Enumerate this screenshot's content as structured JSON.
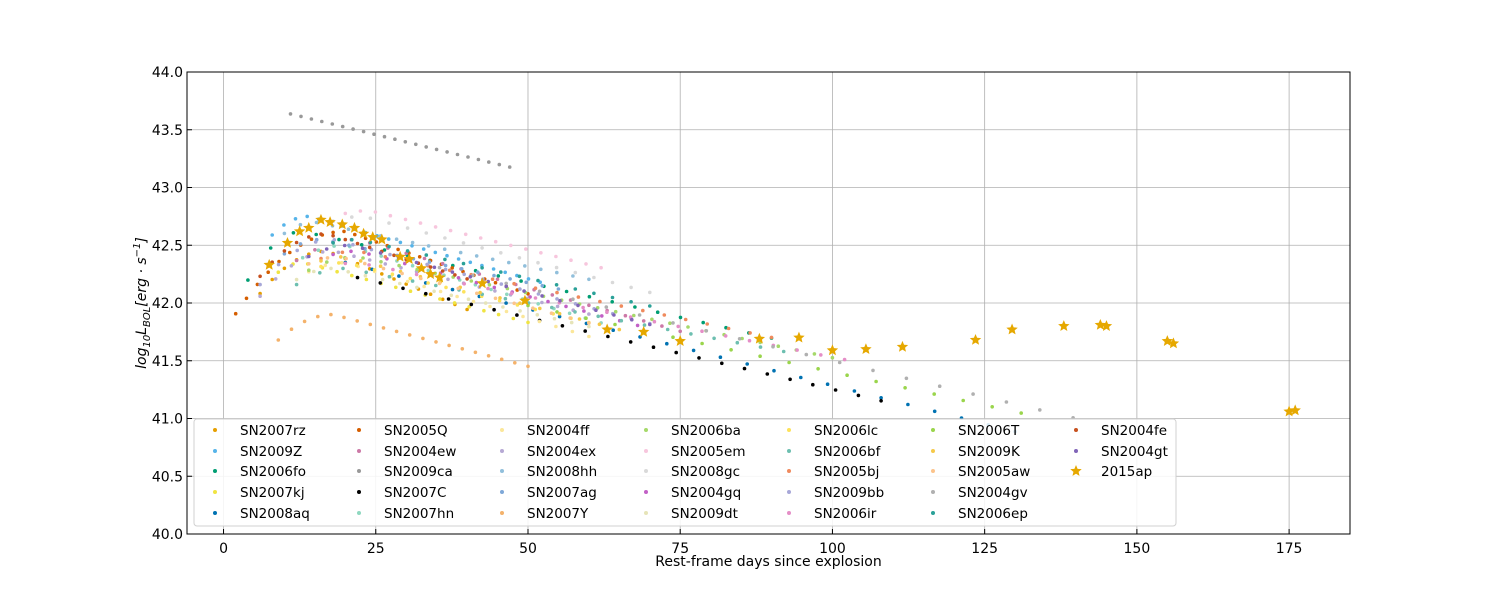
{
  "chart_data": {
    "type": "scatter",
    "xlabel": "Rest-frame days since explosion",
    "ylabel_parts": {
      "base": "log",
      "sub1": "10",
      "mid": "L",
      "sub2": "BOL",
      "bracket": "[erg · s",
      "sup": "−1",
      "close": "]"
    },
    "xlim": [
      -6,
      185
    ],
    "ylim": [
      40.0,
      44.0
    ],
    "xticks": [
      0,
      25,
      50,
      75,
      100,
      125,
      150,
      175
    ],
    "yticks": [
      40.0,
      40.5,
      41.0,
      41.5,
      42.0,
      42.5,
      43.0,
      43.5,
      44.0
    ],
    "ytick_labels": [
      "40.0",
      "40.5",
      "41.0",
      "41.5",
      "42.0",
      "42.5",
      "43.0",
      "43.5",
      "44.0"
    ],
    "grid": true,
    "legend_placement": "lower-left",
    "series": [
      {
        "name": "SN2007rz",
        "color": "#e69f00",
        "marker": "dot",
        "shape": {
          "peak_t": 17,
          "peak": 42.45,
          "start": 6,
          "end": 40,
          "decay": 0.022,
          "pts": 18
        }
      },
      {
        "name": "SN2009Z",
        "color": "#56b4e9",
        "marker": "dot",
        "shape": {
          "peak_t": 14,
          "peak": 42.75,
          "start": 8,
          "end": 52,
          "decay": 0.015,
          "pts": 24
        }
      },
      {
        "name": "SN2006fo",
        "color": "#009e73",
        "marker": "dot",
        "shape": {
          "peak_t": 13,
          "peak": 42.62,
          "start": 4,
          "end": 90,
          "decay": 0.012,
          "pts": 24
        }
      },
      {
        "name": "SN2007kj",
        "color": "#f0e442",
        "marker": "dot",
        "shape": {
          "peak_t": 13,
          "peak": 42.35,
          "start": 9,
          "end": 50,
          "decay": 0.014,
          "pts": 18
        }
      },
      {
        "name": "SN2008aq",
        "color": "#0072b2",
        "marker": "dot",
        "shape": {
          "peak_t": 20,
          "peak": 42.35,
          "start": 20,
          "end": 130,
          "decay": 0.0133,
          "pts": 26
        }
      },
      {
        "name": "SN2005Q",
        "color": "#d55e00",
        "marker": "dot",
        "shape": {
          "peak_t": 20,
          "peak": 42.62,
          "start": 2,
          "end": 50,
          "decay": 0.018,
          "pts": 28
        }
      },
      {
        "name": "SN2004ew",
        "color": "#cc79a7",
        "marker": "dot",
        "shape": {
          "peak_t": 22,
          "peak": 42.55,
          "start": 12,
          "end": 75,
          "decay": 0.015,
          "pts": 22
        }
      },
      {
        "name": "SN2009ca",
        "color": "#999999",
        "marker": "dot",
        "shape": {
          "peak_t": 10,
          "peak": 43.65,
          "start": 11,
          "end": 47,
          "decay": 0.0128,
          "pts": 22
        }
      },
      {
        "name": "SN2007C",
        "color": "#000000",
        "marker": "dot",
        "shape": {
          "peak_t": 22,
          "peak": 42.22,
          "start": 22,
          "end": 108,
          "decay": 0.0124,
          "pts": 24
        }
      },
      {
        "name": "SN2007hn",
        "color": "#8fd8c0",
        "marker": "dot",
        "shape": {
          "peak_t": 20,
          "peak": 42.5,
          "start": 13,
          "end": 62,
          "decay": 0.016,
          "pts": 20
        }
      },
      {
        "name": "SN2004ff",
        "color": "#fbe79a",
        "marker": "dot",
        "shape": {
          "peak_t": 20,
          "peak": 42.35,
          "start": 14,
          "end": 60,
          "decay": 0.016,
          "pts": 18
        }
      },
      {
        "name": "SN2004ex",
        "color": "#b6a9d4",
        "marker": "dot",
        "shape": {
          "peak_t": 18,
          "peak": 42.45,
          "start": 6,
          "end": 60,
          "decay": 0.013,
          "pts": 22
        }
      },
      {
        "name": "SN2008hh",
        "color": "#91bfdb",
        "marker": "dot",
        "shape": {
          "peak_t": 15,
          "peak": 42.7,
          "start": 10,
          "end": 60,
          "decay": 0.011,
          "pts": 20
        }
      },
      {
        "name": "SN2007ag",
        "color": "#7fa8d8",
        "marker": "dot",
        "shape": {
          "peak_t": 16,
          "peak": 42.55,
          "start": 10,
          "end": 55,
          "decay": 0.011,
          "pts": 18
        }
      },
      {
        "name": "SN2007Y",
        "color": "#f4b26b",
        "marker": "dot",
        "shape": {
          "peak_t": 18,
          "peak": 41.9,
          "start": 9,
          "end": 50,
          "decay": 0.014,
          "pts": 20
        }
      },
      {
        "name": "SN2006ba",
        "color": "#a6d96a",
        "marker": "dot",
        "shape": {
          "peak_t": 22,
          "peak": 42.4,
          "start": 14,
          "end": 100,
          "decay": 0.0112,
          "pts": 30
        }
      },
      {
        "name": "SN2005em",
        "color": "#f7c6dd",
        "marker": "dot",
        "shape": {
          "peak_t": 24,
          "peak": 42.8,
          "start": 20,
          "end": 62,
          "decay": 0.013,
          "pts": 18
        }
      },
      {
        "name": "SN2008gc",
        "color": "#d9d9d9",
        "marker": "dot",
        "shape": {
          "peak_t": 23,
          "peak": 42.75,
          "start": 18,
          "end": 70,
          "decay": 0.014,
          "pts": 18
        }
      },
      {
        "name": "SN2004gq",
        "color": "#c260c6",
        "marker": "dot",
        "shape": {
          "peak_t": 22,
          "peak": 42.45,
          "start": 18,
          "end": 68,
          "decay": 0.014,
          "pts": 18
        }
      },
      {
        "name": "SN2009dt",
        "color": "#e6e4b8",
        "marker": "dot",
        "shape": {
          "peak_t": 18,
          "peak": 42.3,
          "start": 12,
          "end": 60,
          "decay": 0.012,
          "pts": 18
        }
      },
      {
        "name": "SN2006lc",
        "color": "#fde25b",
        "marker": "dot",
        "shape": {
          "peak_t": 20,
          "peak": 42.35,
          "start": 16,
          "end": 60,
          "decay": 0.013,
          "pts": 16
        }
      },
      {
        "name": "SN2006bf",
        "color": "#6dbfb0",
        "marker": "dot",
        "shape": {
          "peak_t": 20,
          "peak": 42.3,
          "start": 12,
          "end": 92,
          "decay": 0.01,
          "pts": 22
        }
      },
      {
        "name": "SN2005bj",
        "color": "#f08a5d",
        "marker": "dot",
        "shape": {
          "peak_t": 22,
          "peak": 42.45,
          "start": 16,
          "end": 90,
          "decay": 0.011,
          "pts": 22
        }
      },
      {
        "name": "SN2009bb",
        "color": "#a7a7d8",
        "marker": "dot",
        "shape": {
          "peak_t": 18,
          "peak": 42.55,
          "start": 6,
          "end": 70,
          "decay": 0.014,
          "pts": 22
        }
      },
      {
        "name": "SN2006ir",
        "color": "#e58ec7",
        "marker": "dot",
        "shape": {
          "peak_t": 22,
          "peak": 42.35,
          "start": 20,
          "end": 102,
          "decay": 0.0105,
          "pts": 22
        }
      },
      {
        "name": "SN2006T",
        "color": "#9ad54c",
        "marker": "dot",
        "shape": {
          "peak_t": 22,
          "peak": 42.3,
          "start": 50,
          "end": 131,
          "decay": 0.0115,
          "pts": 18
        }
      },
      {
        "name": "SN2009K",
        "color": "#f6c94a",
        "marker": "dot",
        "shape": {
          "peak_t": 20,
          "peak": 42.4,
          "start": 16,
          "end": 65,
          "decay": 0.014,
          "pts": 16
        }
      },
      {
        "name": "SN2005aw",
        "color": "#fcc48c",
        "marker": "dot",
        "shape": {
          "peak_t": 19,
          "peak": 42.4,
          "start": 14,
          "end": 60,
          "decay": 0.014,
          "pts": 16
        }
      },
      {
        "name": "SN2004gv",
        "color": "#b0b0b0",
        "marker": "dot",
        "shape": {
          "peak_t": 20,
          "peak": 42.5,
          "start": 30,
          "end": 145,
          "decay": 0.0125,
          "pts": 22
        }
      },
      {
        "name": "SN2006ep",
        "color": "#2aa198",
        "marker": "dot",
        "shape": {
          "peak_t": 22,
          "peak": 42.55,
          "start": 18,
          "end": 70,
          "decay": 0.012,
          "pts": 18
        }
      },
      {
        "name": "SN2004fe",
        "color": "#c7511f",
        "marker": "dot",
        "shape": {
          "peak_t": 17,
          "peak": 42.6,
          "start": 6,
          "end": 40,
          "decay": 0.017,
          "pts": 18
        }
      },
      {
        "name": "SN2004gt",
        "color": "#8064b8",
        "marker": "dot",
        "shape": {
          "peak_t": 21,
          "peak": 42.5,
          "start": 14,
          "end": 70,
          "decay": 0.014,
          "pts": 20
        }
      },
      {
        "name": "2015ap",
        "color": "#e6a800",
        "marker": "star",
        "points": [
          [
            7.5,
            42.33
          ],
          [
            10.5,
            42.52
          ],
          [
            12.5,
            42.62
          ],
          [
            14,
            42.65
          ],
          [
            16,
            42.72
          ],
          [
            17.5,
            42.7
          ],
          [
            19.5,
            42.68
          ],
          [
            21.5,
            42.65
          ],
          [
            23,
            42.6
          ],
          [
            24.5,
            42.57
          ],
          [
            26,
            42.55
          ],
          [
            29,
            42.4
          ],
          [
            30.5,
            42.38
          ],
          [
            32.5,
            42.3
          ],
          [
            34,
            42.25
          ],
          [
            35.5,
            42.22
          ],
          [
            42.5,
            42.17
          ],
          [
            49.5,
            42.02
          ],
          [
            63,
            41.77
          ],
          [
            69,
            41.75
          ],
          [
            75,
            41.67
          ],
          [
            88,
            41.69
          ],
          [
            94.5,
            41.7
          ],
          [
            100,
            41.59
          ],
          [
            105.5,
            41.6
          ],
          [
            111.5,
            41.62
          ],
          [
            123.5,
            41.68
          ],
          [
            129.5,
            41.77
          ],
          [
            138,
            41.8
          ],
          [
            144,
            41.81
          ],
          [
            145,
            41.8
          ],
          [
            155,
            41.67
          ],
          [
            156,
            41.65
          ],
          [
            175,
            41.06
          ],
          [
            176,
            41.07
          ]
        ]
      }
    ]
  }
}
